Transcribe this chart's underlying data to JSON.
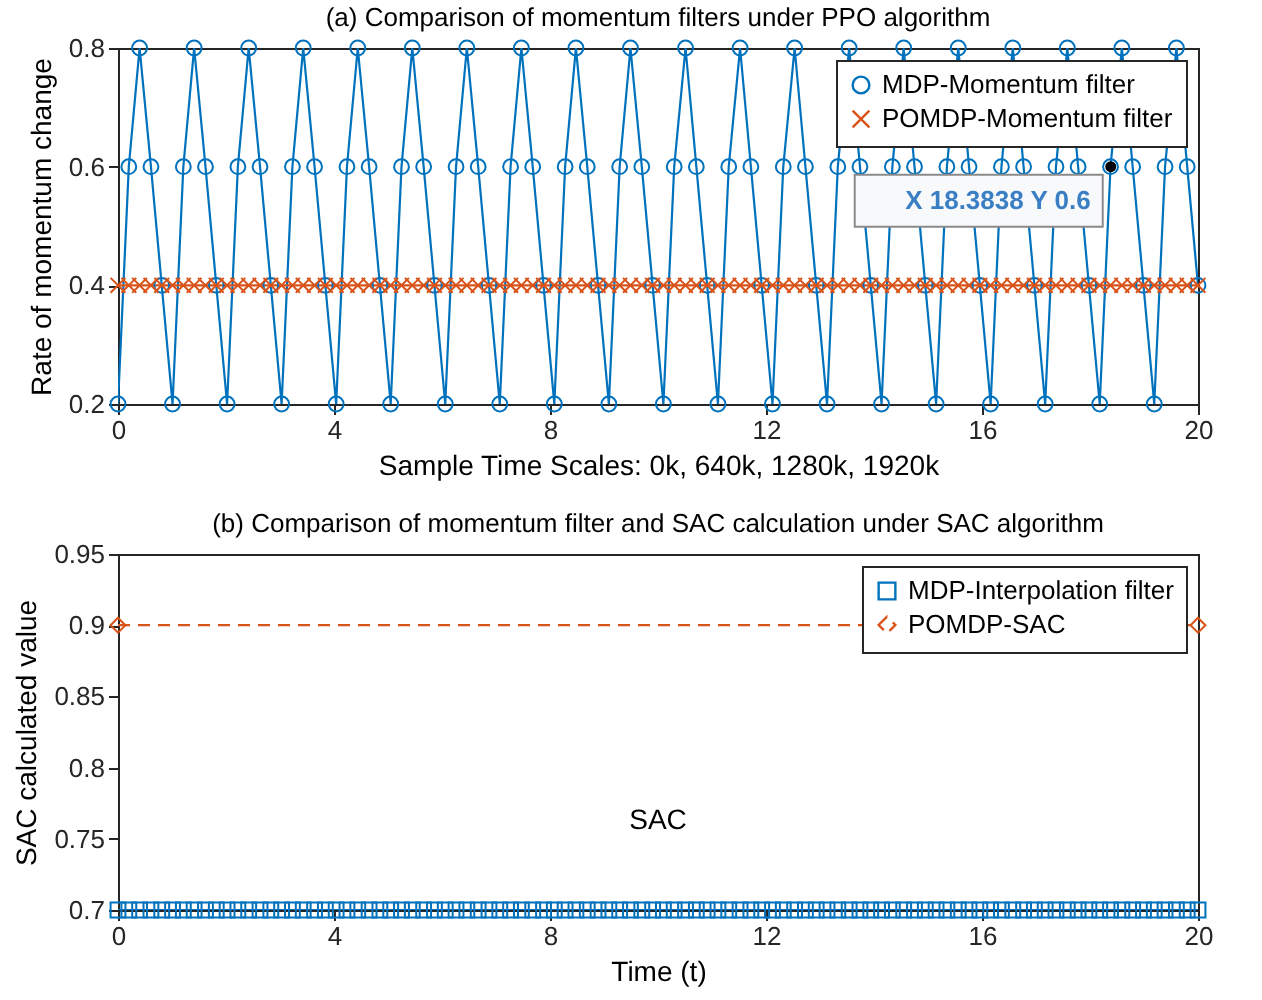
{
  "chart_data": [
    {
      "type": "line",
      "title": "(a) Comparison of momentum filters under PPO algorithm",
      "xlabel": "Sample Time Scales: 0k, 640k, 1280k, 1920k",
      "ylabel": "Rate of momentum change",
      "x": [
        0,
        0.2,
        0.4,
        0.61,
        0.81,
        1.01,
        1.21,
        1.41,
        1.62,
        1.82,
        2.02,
        2.22,
        2.42,
        2.63,
        2.83,
        3.03,
        3.23,
        3.43,
        3.64,
        3.84,
        4.04,
        4.24,
        4.44,
        4.65,
        4.85,
        5.05,
        5.25,
        5.45,
        5.66,
        5.86,
        6.06,
        6.26,
        6.46,
        6.67,
        6.87,
        7.07,
        7.27,
        7.47,
        7.68,
        7.88,
        8.08,
        8.28,
        8.48,
        8.69,
        8.89,
        9.09,
        9.29,
        9.49,
        9.7,
        9.9,
        10.1,
        10.3,
        10.51,
        10.71,
        10.91,
        11.11,
        11.31,
        11.52,
        11.72,
        11.92,
        12.12,
        12.32,
        12.53,
        12.73,
        12.93,
        13.13,
        13.33,
        13.54,
        13.74,
        13.94,
        14.14,
        14.34,
        14.55,
        14.75,
        14.95,
        15.15,
        15.35,
        15.56,
        15.76,
        15.96,
        16.16,
        16.36,
        16.57,
        16.77,
        16.97,
        17.17,
        17.37,
        17.58,
        17.78,
        17.98,
        18.18,
        18.38,
        18.59,
        18.79,
        18.99,
        19.19,
        19.39,
        19.6,
        19.8,
        20
      ],
      "series": [
        {
          "name": "MDP-Momentum filter",
          "color": "#0072bd",
          "marker": "circle",
          "values": [
            0.2,
            0.6,
            0.8,
            0.6,
            0.4,
            0.2,
            0.6,
            0.8,
            0.6,
            0.4,
            0.2,
            0.6,
            0.8,
            0.6,
            0.4,
            0.2,
            0.6,
            0.8,
            0.6,
            0.4,
            0.2,
            0.6,
            0.8,
            0.6,
            0.4,
            0.2,
            0.6,
            0.8,
            0.6,
            0.4,
            0.2,
            0.6,
            0.8,
            0.6,
            0.4,
            0.2,
            0.6,
            0.8,
            0.6,
            0.4,
            0.2,
            0.6,
            0.8,
            0.6,
            0.4,
            0.2,
            0.6,
            0.8,
            0.6,
            0.4,
            0.2,
            0.6,
            0.8,
            0.6,
            0.4,
            0.2,
            0.6,
            0.8,
            0.6,
            0.4,
            0.2,
            0.6,
            0.8,
            0.6,
            0.4,
            0.2,
            0.6,
            0.8,
            0.6,
            0.4,
            0.2,
            0.6,
            0.8,
            0.6,
            0.4,
            0.2,
            0.6,
            0.8,
            0.6,
            0.4,
            0.2,
            0.6,
            0.8,
            0.6,
            0.4,
            0.2,
            0.6,
            0.8,
            0.6,
            0.4,
            0.2,
            0.6,
            0.8,
            0.6,
            0.4,
            0.2,
            0.6,
            0.8,
            0.6,
            0.4
          ]
        },
        {
          "name": "POMDP-Momentum filter",
          "color": "#d95319",
          "marker": "cross",
          "values": [
            0.4,
            0.4,
            0.4,
            0.4,
            0.4,
            0.4,
            0.4,
            0.4,
            0.4,
            0.4,
            0.4,
            0.4,
            0.4,
            0.4,
            0.4,
            0.4,
            0.4,
            0.4,
            0.4,
            0.4,
            0.4,
            0.4,
            0.4,
            0.4,
            0.4,
            0.4,
            0.4,
            0.4,
            0.4,
            0.4,
            0.4,
            0.4,
            0.4,
            0.4,
            0.4,
            0.4,
            0.4,
            0.4,
            0.4,
            0.4,
            0.4,
            0.4,
            0.4,
            0.4,
            0.4,
            0.4,
            0.4,
            0.4,
            0.4,
            0.4,
            0.4,
            0.4,
            0.4,
            0.4,
            0.4,
            0.4,
            0.4,
            0.4,
            0.4,
            0.4,
            0.4,
            0.4,
            0.4,
            0.4,
            0.4,
            0.4,
            0.4,
            0.4,
            0.4,
            0.4,
            0.4,
            0.4,
            0.4,
            0.4,
            0.4,
            0.4,
            0.4,
            0.4,
            0.4,
            0.4,
            0.4,
            0.4,
            0.4,
            0.4,
            0.4,
            0.4,
            0.4,
            0.4,
            0.4,
            0.4,
            0.4,
            0.4,
            0.4,
            0.4,
            0.4,
            0.4,
            0.4,
            0.4,
            0.4,
            0.4
          ]
        }
      ],
      "annotations": [
        {
          "text": "X 18.3838 Y 0.6",
          "x": 18.3838,
          "y": 0.6
        }
      ],
      "xlim": [
        0,
        20
      ],
      "xticks": [
        0,
        4,
        8,
        12,
        16,
        20
      ],
      "ylim": [
        0.2,
        0.8
      ],
      "yticks": [
        0.2,
        0.4,
        0.6,
        0.8
      ],
      "legend": "top right",
      "line_style": "solid"
    },
    {
      "type": "line",
      "title": "(b) Comparison of momentum filter and SAC calculation under SAC algorithm",
      "xlabel": "Time (t)",
      "ylabel": "SAC calculated value",
      "x": [
        0,
        0.2,
        0.4,
        0.61,
        0.81,
        1.01,
        1.21,
        1.41,
        1.62,
        1.82,
        2.02,
        2.22,
        2.42,
        2.63,
        2.83,
        3.03,
        3.23,
        3.43,
        3.64,
        3.84,
        4.04,
        4.24,
        4.44,
        4.65,
        4.85,
        5.05,
        5.25,
        5.45,
        5.66,
        5.86,
        6.06,
        6.26,
        6.46,
        6.67,
        6.87,
        7.07,
        7.27,
        7.47,
        7.68,
        7.88,
        8.08,
        8.28,
        8.48,
        8.69,
        8.89,
        9.09,
        9.29,
        9.49,
        9.7,
        9.9,
        10.1,
        10.3,
        10.51,
        10.71,
        10.91,
        11.11,
        11.31,
        11.52,
        11.72,
        11.92,
        12.12,
        12.32,
        12.53,
        12.73,
        12.93,
        13.13,
        13.33,
        13.54,
        13.74,
        13.94,
        14.14,
        14.34,
        14.55,
        14.75,
        14.95,
        15.15,
        15.35,
        15.56,
        15.76,
        15.96,
        16.16,
        16.36,
        16.57,
        16.77,
        16.97,
        17.17,
        17.37,
        17.58,
        17.78,
        17.98,
        18.18,
        18.38,
        18.59,
        18.79,
        18.99,
        19.19,
        19.39,
        19.6,
        19.8,
        20
      ],
      "series": [
        {
          "name": "MDP-Interpolation filter",
          "color": "#0072bd",
          "marker": "square",
          "line_style": "solid",
          "values": [
            0.7,
            0.7,
            0.7,
            0.7,
            0.7,
            0.7,
            0.7,
            0.7,
            0.7,
            0.7,
            0.7,
            0.7,
            0.7,
            0.7,
            0.7,
            0.7,
            0.7,
            0.7,
            0.7,
            0.7,
            0.7,
            0.7,
            0.7,
            0.7,
            0.7,
            0.7,
            0.7,
            0.7,
            0.7,
            0.7,
            0.7,
            0.7,
            0.7,
            0.7,
            0.7,
            0.7,
            0.7,
            0.7,
            0.7,
            0.7,
            0.7,
            0.7,
            0.7,
            0.7,
            0.7,
            0.7,
            0.7,
            0.7,
            0.7,
            0.7,
            0.7,
            0.7,
            0.7,
            0.7,
            0.7,
            0.7,
            0.7,
            0.7,
            0.7,
            0.7,
            0.7,
            0.7,
            0.7,
            0.7,
            0.7,
            0.7,
            0.7,
            0.7,
            0.7,
            0.7,
            0.7,
            0.7,
            0.7,
            0.7,
            0.7,
            0.7,
            0.7,
            0.7,
            0.7,
            0.7,
            0.7,
            0.7,
            0.7,
            0.7,
            0.7,
            0.7,
            0.7,
            0.7,
            0.7,
            0.7,
            0.7,
            0.7,
            0.7,
            0.7,
            0.7,
            0.7,
            0.7,
            0.7,
            0.7,
            0.7
          ]
        },
        {
          "name": "POMDP-SAC",
          "color": "#d95319",
          "marker": "diamond",
          "line_style": "dashed",
          "x": [
            0,
            20
          ],
          "values": [
            0.9,
            0.9
          ]
        }
      ],
      "annotations": [
        "SAC"
      ],
      "xlim": [
        0,
        20
      ],
      "xticks": [
        0,
        4,
        8,
        12,
        16,
        20
      ],
      "ylim": [
        0.7,
        0.95
      ],
      "yticks": [
        0.7,
        0.75,
        0.8,
        0.85,
        0.9,
        0.95
      ],
      "legend": "top right"
    }
  ]
}
